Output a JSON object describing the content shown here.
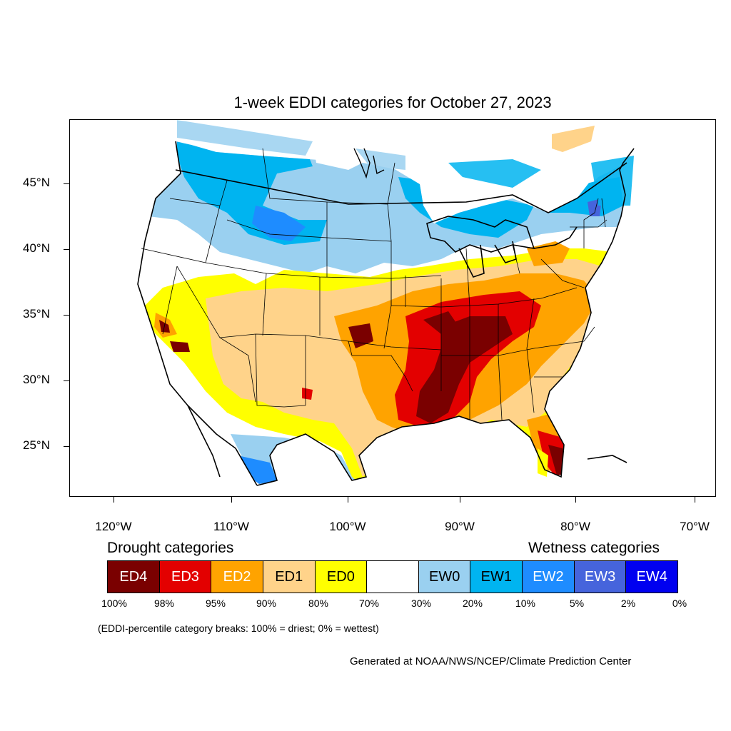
{
  "title": "1-week EDDI categories for October 27, 2023",
  "lat_labels": [
    "45°N",
    "40°N",
    "35°N",
    "30°N",
    "25°N"
  ],
  "lon_labels": [
    "120°W",
    "110°W",
    "100°W",
    "90°W",
    "80°W",
    "70°W"
  ],
  "legend": {
    "drought_heading": "Drought categories",
    "wetness_heading": "Wetness categories",
    "categories": [
      {
        "label": "ED4",
        "color": "#7a0000",
        "text_color": "#ffffff"
      },
      {
        "label": "ED3",
        "color": "#e30000",
        "text_color": "#ffffff"
      },
      {
        "label": "ED2",
        "color": "#ffa300",
        "text_color": "#ffffff"
      },
      {
        "label": "ED1",
        "color": "#ffd38a",
        "text_color": "#000000"
      },
      {
        "label": "ED0",
        "color": "#ffff00",
        "text_color": "#000000"
      },
      {
        "label": "",
        "color": "#ffffff",
        "text_color": "#000000"
      },
      {
        "label": "EW0",
        "color": "#9ad0f0",
        "text_color": "#000000"
      },
      {
        "label": "EW1",
        "color": "#00b4f0",
        "text_color": "#000000"
      },
      {
        "label": "EW2",
        "color": "#1e8cff",
        "text_color": "#ffffff"
      },
      {
        "label": "EW3",
        "color": "#4664dc",
        "text_color": "#ffffff"
      },
      {
        "label": "EW4",
        "color": "#0000f0",
        "text_color": "#ffffff"
      }
    ],
    "breaks": [
      "100%",
      "98%",
      "95%",
      "90%",
      "80%",
      "70%",
      "30%",
      "20%",
      "10%",
      "5%",
      "2%",
      "0%"
    ]
  },
  "note": "(EDDI-percentile category breaks: 100% = driest; 0% = wettest)",
  "credit": "Generated at NOAA/NWS/NCEP/Climate Prediction Center"
}
